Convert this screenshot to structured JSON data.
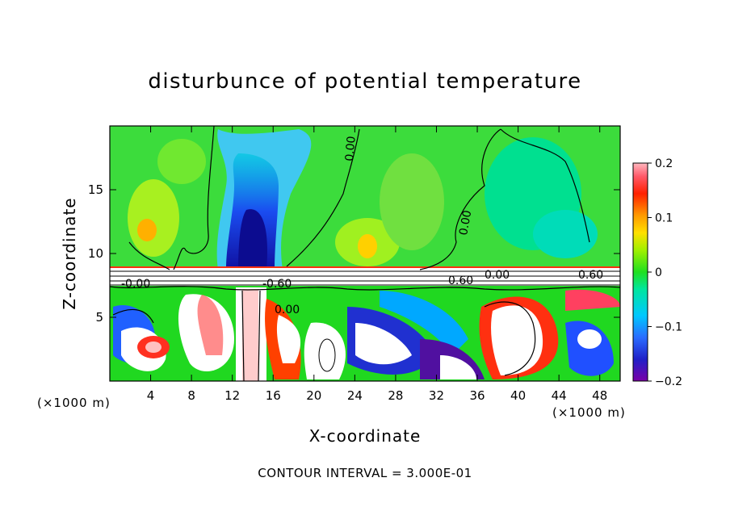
{
  "chart_data": {
    "type": "heatmap",
    "title": "disturbunce of potential temperature",
    "xlabel": "X-coordinate",
    "ylabel": "Z-coordinate",
    "x_unit": "(×1000 m)",
    "y_unit": "(×1000 m)",
    "x_ticks": [
      4,
      8,
      12,
      16,
      20,
      24,
      28,
      32,
      36,
      40,
      44,
      48
    ],
    "y_ticks": [
      5,
      10,
      15
    ],
    "xlim": [
      0,
      50
    ],
    "ylim": [
      0,
      20
    ],
    "colorbar": {
      "min": -0.2,
      "max": 0.2,
      "tick_values": [
        0.2,
        0.1,
        0,
        -0.1,
        -0.2
      ],
      "tick_labels": [
        "0.2",
        "0.1",
        "0",
        "−0.1",
        "−0.2"
      ]
    },
    "contour_labels": [
      "0.00",
      "0.00",
      "0.60",
      "0.60",
      "-0.00",
      "-0.60",
      "0.00",
      "0.00"
    ],
    "footer": "CONTOUR INTERVAL = 3.000E-01"
  }
}
